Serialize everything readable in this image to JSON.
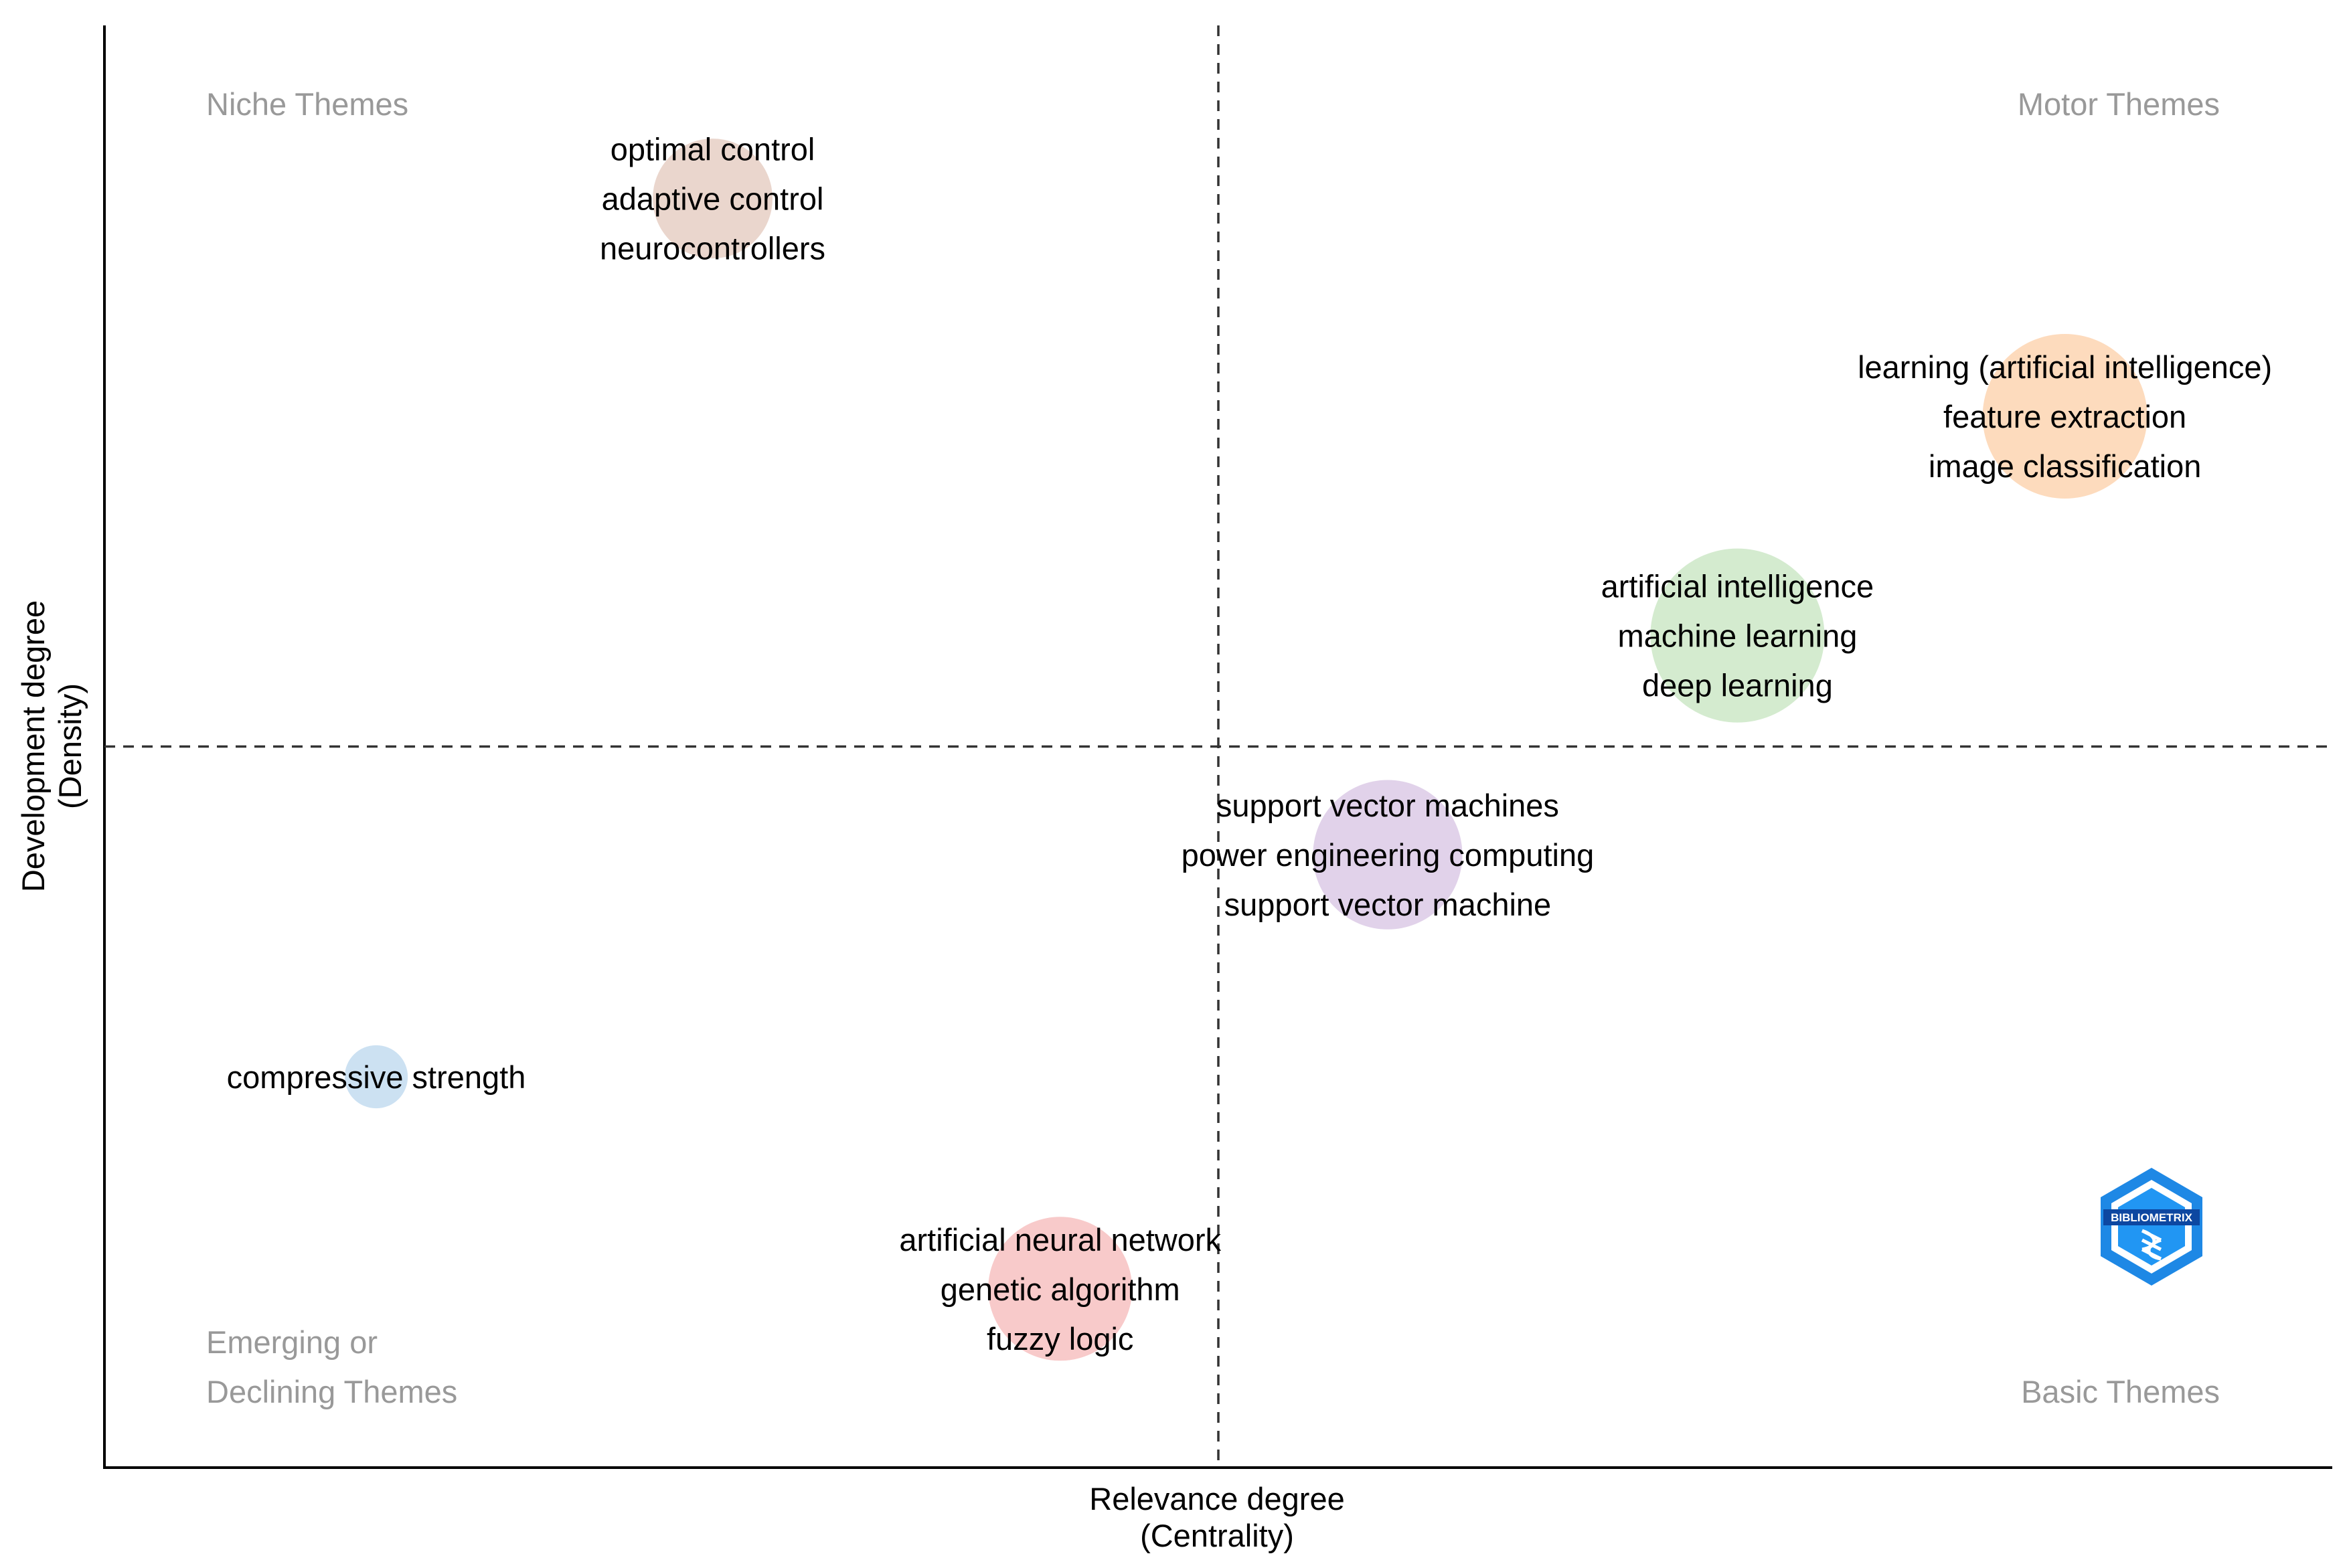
{
  "chart_data": {
    "type": "scatter",
    "title": "",
    "xlabel": [
      "Relevance degree",
      "(Centrality)"
    ],
    "ylabel": [
      "Development degree",
      "(Density)"
    ],
    "xlim": [
      0,
      100
    ],
    "ylim": [
      0,
      100
    ],
    "x_divider": 50,
    "y_divider": 50,
    "quadrant_labels": {
      "top_left": [
        "Niche Themes"
      ],
      "top_right": [
        "Motor Themes"
      ],
      "bottom_left": [
        "Emerging or",
        "Declining Themes"
      ],
      "bottom_right": [
        "Basic Themes"
      ]
    },
    "clusters": [
      {
        "x": 27.3,
        "y": 88.0,
        "size": 0.9,
        "color": "#E6CFC4",
        "labels": [
          "optimal control",
          "adaptive control",
          "neurocontrollers"
        ]
      },
      {
        "x": 88.0,
        "y": 72.9,
        "size": 1.7,
        "color": "#FDD5B1",
        "labels": [
          "learning (artificial intelligence)",
          "feature extraction",
          "image classification"
        ]
      },
      {
        "x": 73.3,
        "y": 57.7,
        "size": 1.9,
        "color": "#CCE8C7",
        "labels": [
          "artificial intelligence",
          "machine learning",
          "deep learning"
        ]
      },
      {
        "x": 57.6,
        "y": 42.5,
        "size": 1.4,
        "color": "#DCCAE6",
        "labels": [
          "support vector machines",
          "power engineering computing",
          "support vector machine"
        ]
      },
      {
        "x": 12.2,
        "y": 27.1,
        "size": 0.25,
        "color": "#C3DCF0",
        "labels": [
          "compressive strength"
        ]
      },
      {
        "x": 42.9,
        "y": 12.4,
        "size": 1.3,
        "color": "#F7C1C1",
        "labels": [
          "artificial neural network",
          "genetic algorithm",
          "fuzzy logic"
        ]
      }
    ]
  },
  "logo": {
    "text": "BIBLIOMETRIX"
  }
}
